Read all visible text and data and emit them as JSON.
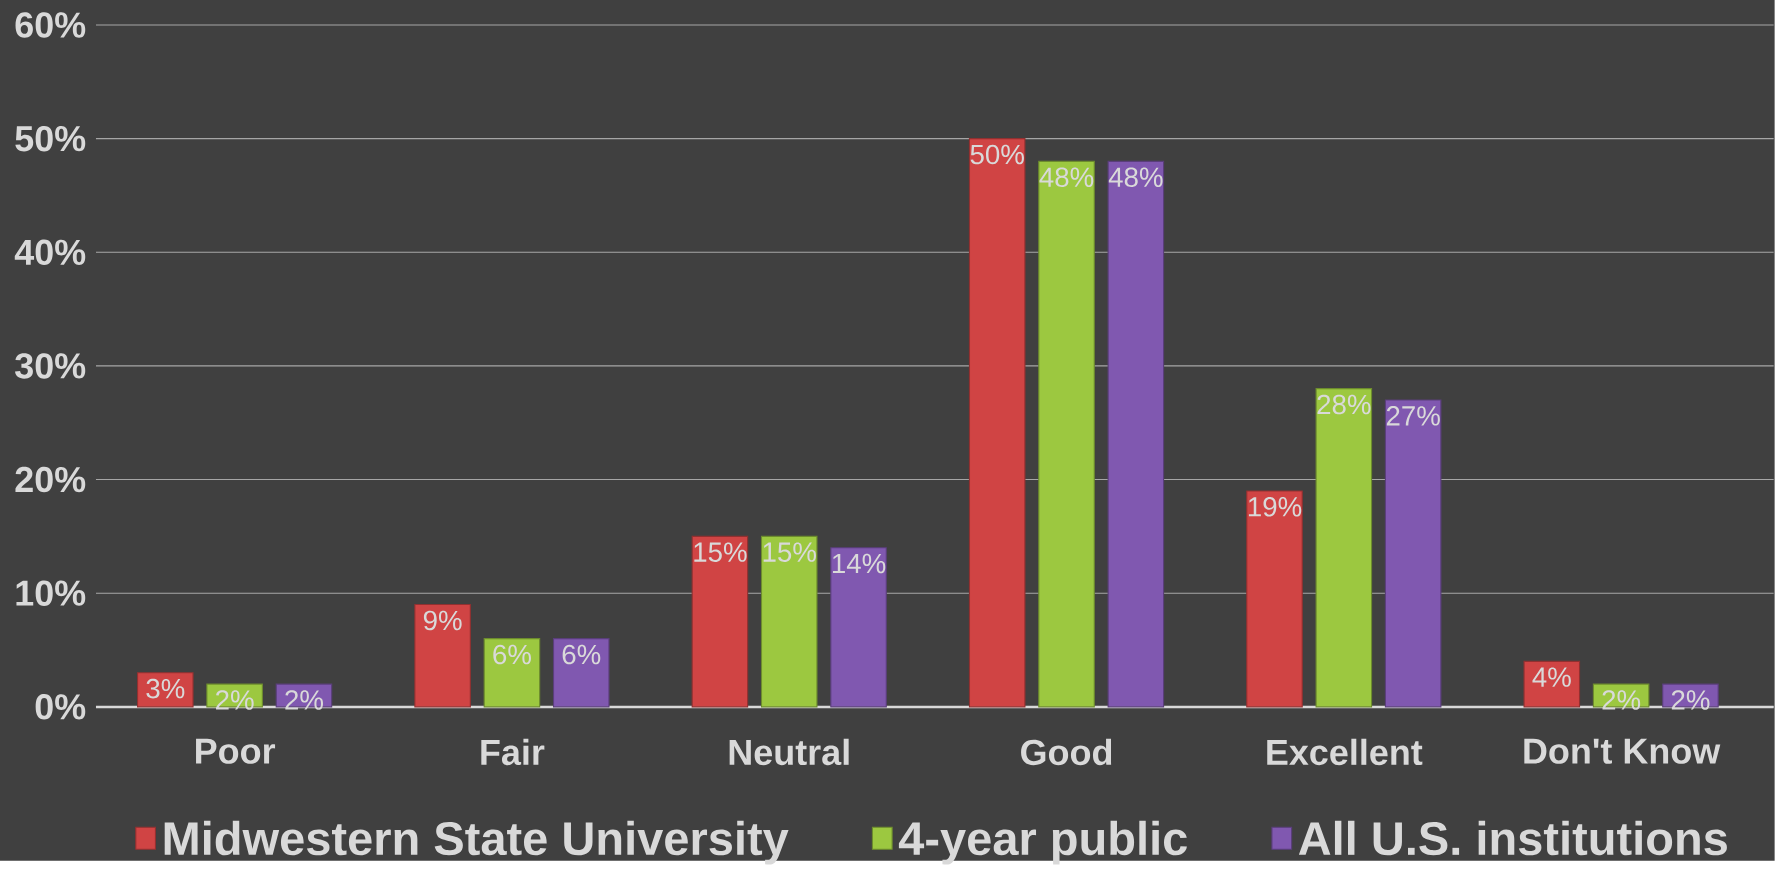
{
  "chart_data": {
    "type": "bar",
    "categories": [
      "Poor",
      "Fair",
      "Neutral",
      "Good",
      "Excellent",
      "Don't Know"
    ],
    "series": [
      {
        "name": "Midwestern State University",
        "color": "#d04444",
        "values": [
          3,
          9,
          15,
          50,
          19,
          4
        ],
        "value_labels": [
          "3%",
          "9%",
          "15%",
          "50%",
          "19%",
          "4%"
        ]
      },
      {
        "name": "4-year public",
        "color": "#9cc840",
        "values": [
          2,
          6,
          15,
          48,
          28,
          2
        ],
        "value_labels": [
          "2%",
          "6%",
          "15%",
          "48%",
          "28%",
          "2%"
        ]
      },
      {
        "name": "All U.S. institutions",
        "color": "#8058b0",
        "values": [
          2,
          6,
          14,
          48,
          27,
          2
        ],
        "value_labels": [
          "2%",
          "6%",
          "14%",
          "48%",
          "27%",
          "2%"
        ]
      }
    ],
    "ylim": [
      0,
      60
    ],
    "yticks": [
      {
        "value": 0,
        "label": "0%"
      },
      {
        "value": 10,
        "label": "10%"
      },
      {
        "value": 20,
        "label": "20%"
      },
      {
        "value": 30,
        "label": "30%"
      },
      {
        "value": 40,
        "label": "40%"
      },
      {
        "value": 50,
        "label": "50%"
      },
      {
        "value": 60,
        "label": "60%"
      }
    ],
    "grid": "y",
    "legend": "bottom"
  }
}
